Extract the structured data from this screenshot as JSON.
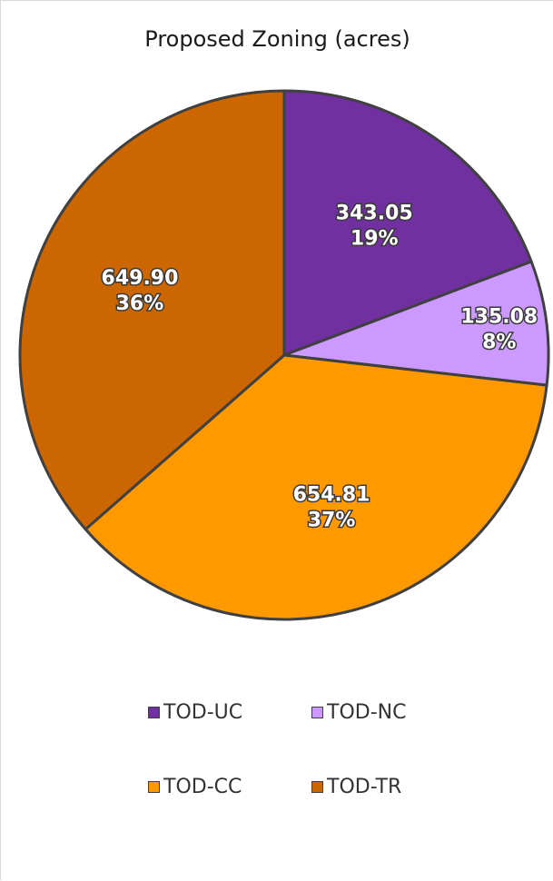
{
  "chart_data": {
    "type": "pie",
    "title": "Proposed Zoning (acres)",
    "categories": [
      "TOD-UC",
      "TOD-NC",
      "TOD-CC",
      "TOD-TR"
    ],
    "values": [
      343.05,
      135.08,
      654.81,
      649.9
    ],
    "value_labels": [
      "343.05",
      "135.08",
      "654.81",
      "649.90"
    ],
    "percent_labels": [
      "19%",
      "8%",
      "37%",
      "36%"
    ],
    "colors": [
      "#7030A0",
      "#CC99FF",
      "#FF9900",
      "#CC6600"
    ],
    "legend_position": "bottom"
  }
}
